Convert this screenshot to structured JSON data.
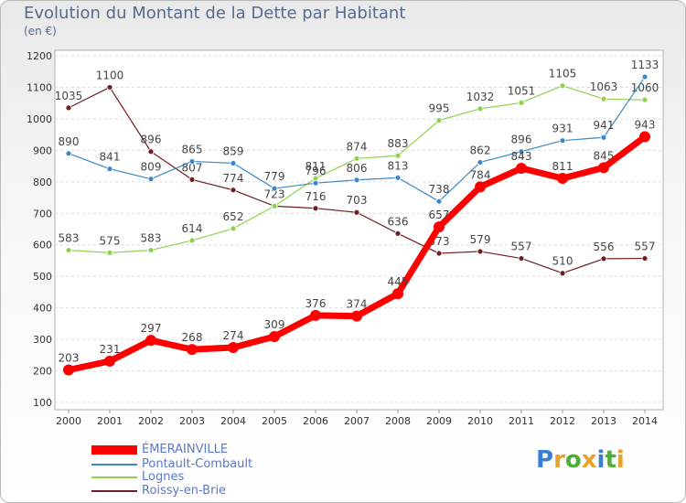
{
  "header": {
    "title": "Evolution du Montant de la Dette par Habitant",
    "unit": "(en €)"
  },
  "logo": {
    "letters": [
      "P",
      "r",
      "o",
      "x",
      "i",
      "t",
      "i"
    ],
    "colors": [
      "#3a7fd6",
      "#e8a12a",
      "#4fae3a",
      "#e8a12a",
      "#3a7fd6",
      "#4fae3a",
      "#e8a12a"
    ]
  },
  "chart_data": {
    "type": "line",
    "title": "Evolution du Montant de la Dette par Habitant",
    "subtitle": "(en €)",
    "xlabel": "",
    "ylabel": "",
    "x": [
      "2000",
      "2001",
      "2002",
      "2003",
      "2004",
      "2005",
      "2006",
      "2007",
      "2008",
      "2009",
      "2010",
      "2011",
      "2012",
      "2013",
      "2014"
    ],
    "ylim": [
      100,
      1200
    ],
    "yticks": [
      100,
      200,
      300,
      400,
      500,
      600,
      700,
      800,
      900,
      1000,
      1100,
      1200
    ],
    "grid": true,
    "legend": "bottom-left",
    "series": [
      {
        "name": "Roissy-en-Brie",
        "color": "#6e1f1f",
        "values": [
          1035,
          1100,
          896,
          807,
          774,
          723,
          716,
          703,
          636,
          573,
          579,
          557,
          510,
          556,
          557
        ],
        "labels": [
          "1035",
          "1100",
          "896",
          "807",
          "774",
          "723",
          "716",
          "703",
          "636",
          "573",
          "579",
          "557",
          "510",
          "556",
          "557"
        ]
      },
      {
        "name": "Lognes",
        "color": "#8fd14f",
        "values": [
          583,
          575,
          583,
          614,
          652,
          723,
          811,
          874,
          883,
          995,
          1032,
          1051,
          1105,
          1063,
          1060
        ],
        "labels": [
          "583",
          "575",
          "583",
          "614",
          "652",
          "",
          "811",
          "874",
          "883",
          "995",
          "1032",
          "1051",
          "1105",
          "1063",
          "1060"
        ]
      },
      {
        "name": "Pontault-Combault",
        "color": "#3d87c7",
        "values": [
          890,
          841,
          809,
          865,
          859,
          779,
          796,
          806,
          813,
          738,
          862,
          896,
          931,
          941,
          1133
        ],
        "labels": [
          "890",
          "841",
          "809",
          "865",
          "859",
          "779",
          "796",
          "806",
          "813",
          "738",
          "862",
          "896",
          "931",
          "941",
          "1133"
        ]
      },
      {
        "name": "ÉMERAINVILLE",
        "color": "#ff0000",
        "values": [
          203,
          231,
          297,
          268,
          274,
          309,
          376,
          374,
          445,
          657,
          784,
          843,
          811,
          845,
          943
        ],
        "labels": [
          "203",
          "231",
          "297",
          "268",
          "274",
          "309",
          "376",
          "374",
          "445",
          "657",
          "784",
          "843",
          "811",
          "845",
          "943"
        ]
      }
    ]
  },
  "legend": {
    "items": [
      {
        "label": "ÉMERAINVILLE",
        "color": "#ff0000"
      },
      {
        "label": "Pontault-Combault",
        "color": "#3d87c7"
      },
      {
        "label": "Lognes",
        "color": "#8fd14f"
      },
      {
        "label": "Roissy-en-Brie",
        "color": "#6e1f1f"
      }
    ]
  }
}
